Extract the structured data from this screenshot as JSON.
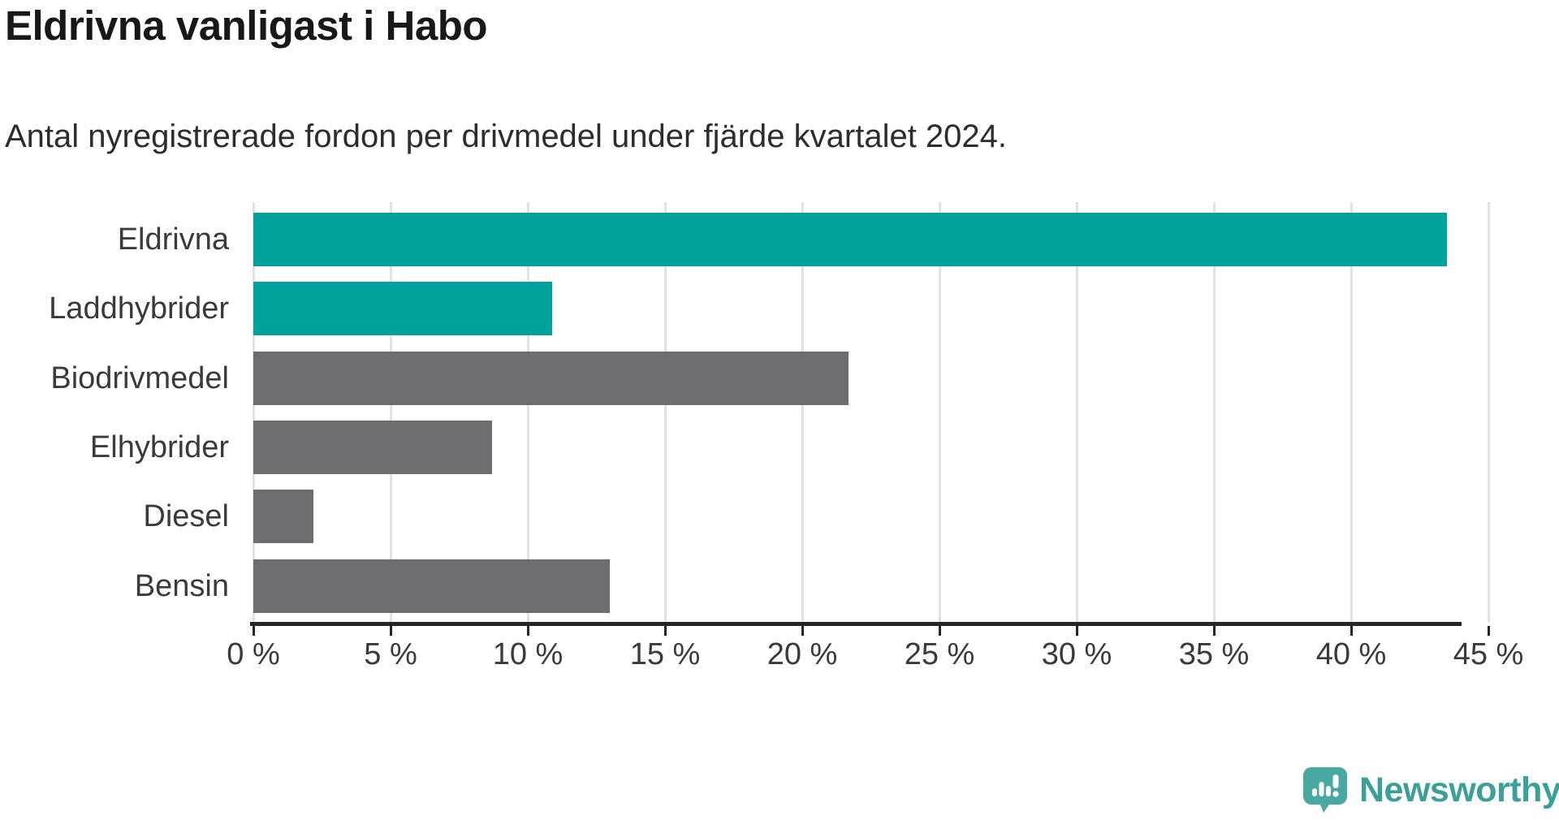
{
  "header": {
    "title": "Eldrivna vanligast i Habo",
    "subtitle": "Antal nyregistrerade fordon per drivmedel under fjärde kvartalet 2024."
  },
  "chart_data": {
    "type": "bar",
    "orientation": "horizontal",
    "title": "Eldrivna vanligast i Habo",
    "subtitle": "Antal nyregistrerade fordon per drivmedel under fjärde kvartalet 2024.",
    "categories": [
      "Eldrivna",
      "Laddhybrider",
      "Biodrivmedel",
      "Elhybrider",
      "Diesel",
      "Bensin"
    ],
    "values": [
      43.5,
      10.9,
      21.7,
      8.7,
      2.2,
      13.0
    ],
    "unit": "%",
    "bar_colors": [
      "#00a29b",
      "#00a29b",
      "#6c6c71",
      "#6c6c71",
      "#6c6c71",
      "#6c6c71"
    ],
    "highlight_color": "#00a29b",
    "default_color": "#6c6c71",
    "xlabel": "",
    "ylabel": "",
    "xlim": [
      0,
      45.8
    ],
    "x_ticks": [
      0,
      5,
      10,
      15,
      20,
      25,
      30,
      35,
      40,
      45
    ],
    "x_tick_labels": [
      "0 %",
      "5 %",
      "10 %",
      "15 %",
      "20 %",
      "25 %",
      "30 %",
      "35 %",
      "40 %",
      "45 %"
    ],
    "grid": true,
    "legend": "none"
  },
  "footer": {
    "brand": "Newsworthy",
    "brand_color": "#3aa098",
    "logo_mark_color": "#48a9a1"
  }
}
